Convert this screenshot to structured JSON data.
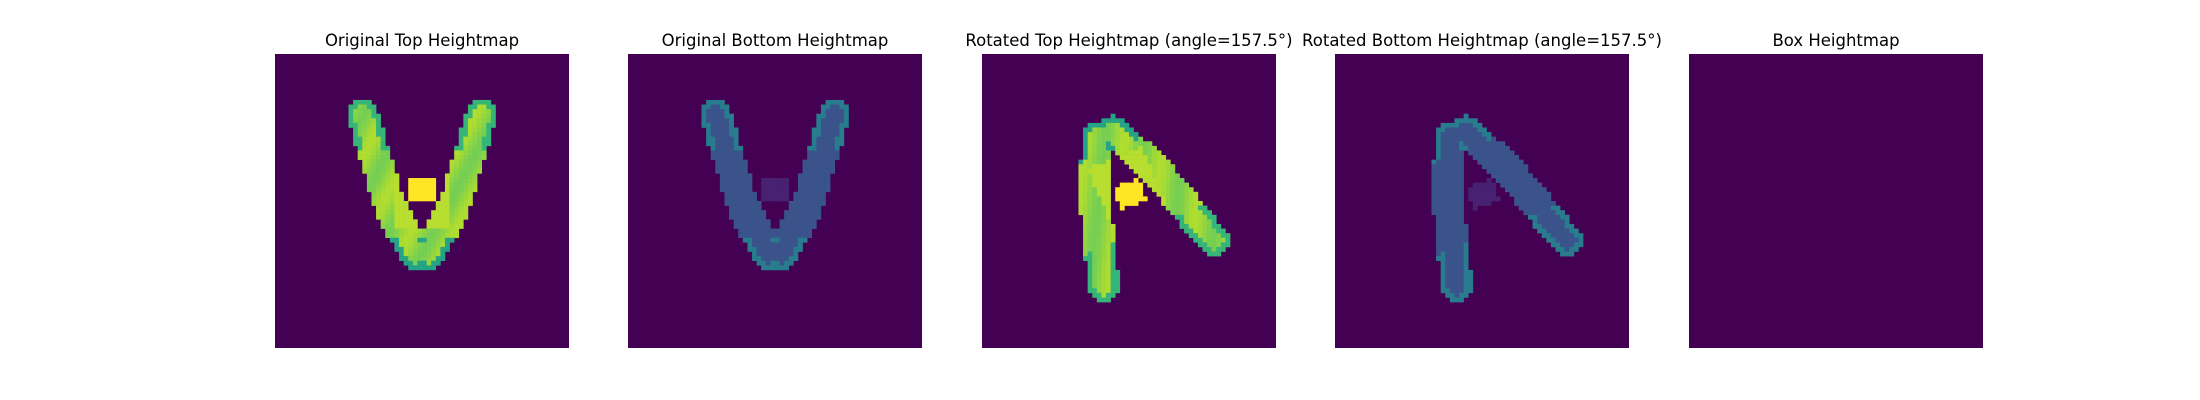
{
  "figure": {
    "background": "#ffffff",
    "colormap": "viridis",
    "colors": {
      "low": "#440154",
      "high": "#fde725"
    }
  },
  "chart_data": [
    {
      "type": "heatmap",
      "title": "Original Top Heightmap",
      "shape": "V-clip",
      "rotation": 0,
      "layer": "top",
      "grid": 64,
      "xlabel": "",
      "ylabel": "",
      "ticks": false
    },
    {
      "type": "heatmap",
      "title": "Original Bottom Heightmap",
      "shape": "V-clip",
      "rotation": 0,
      "layer": "bottom",
      "grid": 64,
      "xlabel": "",
      "ylabel": "",
      "ticks": false
    },
    {
      "type": "heatmap",
      "title": "Rotated Top Heightmap (angle=157.5°)",
      "shape": "V-clip",
      "rotation": 157.5,
      "layer": "top",
      "grid": 64,
      "xlabel": "",
      "ylabel": "",
      "ticks": false
    },
    {
      "type": "heatmap",
      "title": "Rotated Bottom Heightmap (angle=157.5°)",
      "shape": "V-clip",
      "rotation": 157.5,
      "layer": "bottom",
      "grid": 64,
      "xlabel": "",
      "ylabel": "",
      "ticks": false
    },
    {
      "type": "heatmap",
      "title": "Box Heightmap",
      "shape": "empty",
      "rotation": 0,
      "layer": "box",
      "grid": 64,
      "xlabel": "",
      "ylabel": "",
      "ticks": false
    }
  ]
}
